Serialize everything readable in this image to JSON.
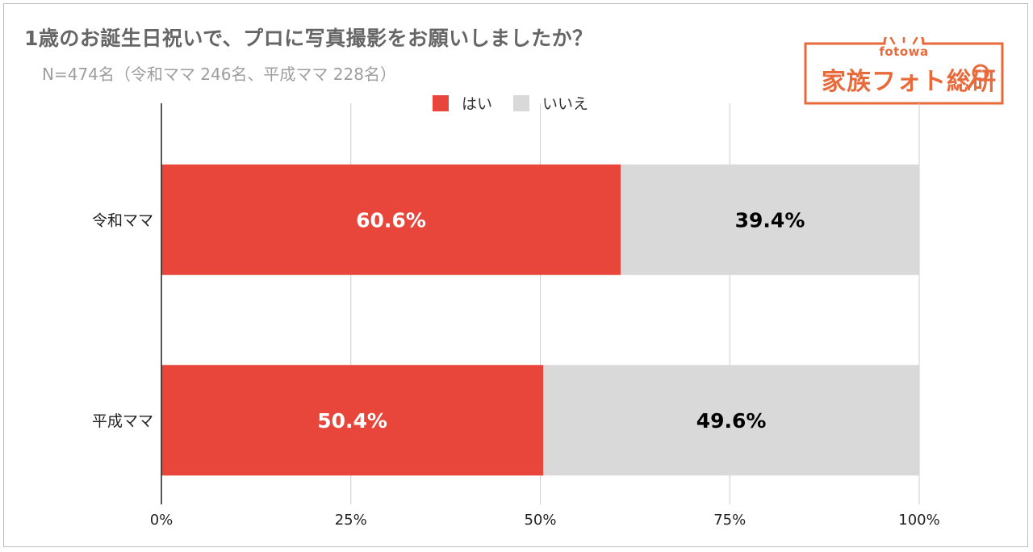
{
  "title": "1歳のお誕生日祝いで、プロに写真撮影をお願いしましたか？",
  "subtitle": "N=474名（令和ママ 246名、平成ママ 228名）",
  "logo": {
    "small": "fotowa",
    "big": "家族フォト総研",
    "icon": "magnifier-icon",
    "color": "#e86a3a"
  },
  "chart_data": {
    "type": "bar",
    "orientation": "horizontal",
    "stacked": true,
    "title": "1歳のお誕生日祝いで、プロに写真撮影をお願いしましたか？",
    "subtitle": "N=474名（令和ママ 246名、平成ママ 228名）",
    "categories": [
      "令和ママ",
      "平成ママ"
    ],
    "series": [
      {
        "name": "はい",
        "values": [
          60.6,
          50.4
        ],
        "labels": [
          "60.6%",
          "50.4%"
        ],
        "color": "#e8463b",
        "label_color": "#ffffff"
      },
      {
        "name": "いいえ",
        "values": [
          39.4,
          49.6
        ],
        "labels": [
          "39.4%",
          "49.6%"
        ],
        "color": "#d9d9d9",
        "label_color": "#000000"
      }
    ],
    "xlim": [
      0,
      100
    ],
    "xticks": [
      0,
      25,
      50,
      75,
      100
    ],
    "xtick_labels": [
      "0%",
      "25%",
      "50%",
      "75%",
      "100%"
    ],
    "grid": true,
    "legend_position": "top-center"
  }
}
